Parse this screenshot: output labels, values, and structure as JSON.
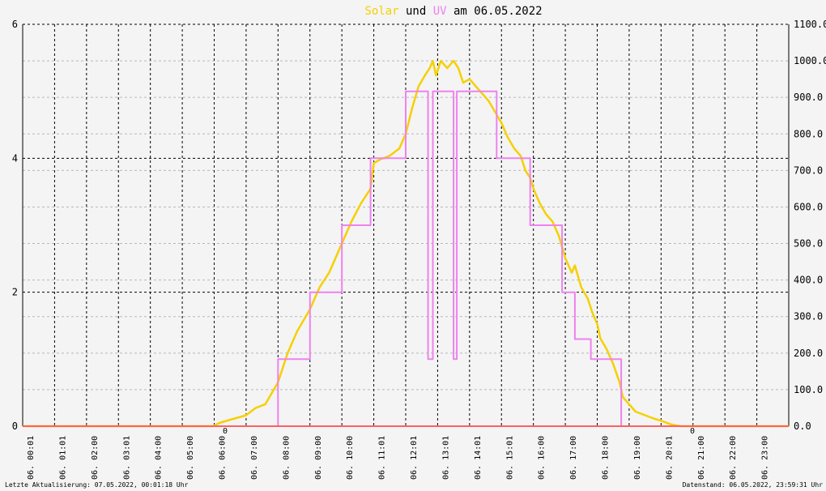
{
  "title": {
    "part1": "Solar",
    "part2": " und ",
    "part3": "UV",
    "part4": " am 06.05.2022"
  },
  "footer": {
    "left": "Letzte Aktualisierung: 07.05.2022, 00:01:18 Uhr",
    "right": "Datenstand: 06.05.2022, 23:59:31 Uhr"
  },
  "markers": {
    "sunrise": "0",
    "sunset": "0"
  },
  "colors": {
    "solar": "#f5d000",
    "uv": "#ee82ee",
    "grid_major": "#000000",
    "grid_minor": "#b8b8b8",
    "baseline": "#ff6060",
    "marker": "#ff0000"
  },
  "chart_data": {
    "type": "line",
    "x_unit": "hour of day",
    "xlim": [
      0,
      24
    ],
    "x_ticks": [
      "06. 00:01",
      "06. 01:01",
      "06. 02:00",
      "06. 03:01",
      "06. 04:00",
      "06. 05:00",
      "06. 06:00",
      "06. 07:00",
      "06. 08:00",
      "06. 09:00",
      "06. 10:00",
      "06. 11:01",
      "06. 12:01",
      "06. 13:01",
      "06. 14:01",
      "06. 15:01",
      "06. 16:00",
      "06. 17:00",
      "06. 18:00",
      "06. 19:00",
      "06. 20:01",
      "06. 21:00",
      "06. 22:00",
      "06. 23:00"
    ],
    "y_left": {
      "lim": [
        0,
        6
      ],
      "ticks": [
        "0",
        "2",
        "4",
        "6"
      ]
    },
    "y_right": {
      "lim": [
        0,
        1100
      ],
      "ticks": [
        "0.0",
        "100.0",
        "200.0",
        "300.0",
        "400.0",
        "500.0",
        "600.0",
        "700.0",
        "800.0",
        "900.0",
        "1000.0",
        "1100.0"
      ]
    },
    "series": [
      {
        "name": "Solar",
        "axis": "right",
        "x": [
          0,
          5.95,
          6.2,
          6.6,
          7.0,
          7.3,
          7.6,
          8.0,
          8.3,
          8.6,
          9.0,
          9.3,
          9.6,
          10.0,
          10.3,
          10.6,
          10.9,
          11.0,
          11.2,
          11.5,
          11.8,
          12.0,
          12.2,
          12.4,
          12.6,
          12.75,
          12.85,
          12.95,
          13.1,
          13.3,
          13.5,
          13.65,
          13.8,
          14.0,
          14.2,
          14.4,
          14.6,
          14.8,
          15.0,
          15.2,
          15.4,
          15.6,
          15.75,
          15.9,
          16.0,
          16.2,
          16.4,
          16.6,
          16.8,
          17.0,
          17.2,
          17.3,
          17.5,
          17.7,
          17.85,
          18.0,
          18.1,
          18.3,
          18.5,
          18.7,
          18.8,
          19.0,
          19.2,
          19.5,
          19.8,
          20.0,
          20.3,
          20.6,
          20.85,
          21.0,
          24
        ],
        "values": [
          0,
          0,
          10,
          20,
          30,
          50,
          60,
          120,
          200,
          260,
          320,
          380,
          420,
          500,
          560,
          610,
          650,
          720,
          730,
          740,
          760,
          800,
          870,
          930,
          960,
          980,
          1000,
          960,
          1000,
          980,
          1000,
          980,
          940,
          950,
          930,
          910,
          890,
          860,
          830,
          790,
          760,
          740,
          700,
          680,
          650,
          610,
          580,
          560,
          520,
          460,
          420,
          440,
          380,
          350,
          310,
          280,
          240,
          210,
          170,
          120,
          80,
          60,
          40,
          30,
          20,
          15,
          5,
          0,
          0,
          0,
          0
        ]
      },
      {
        "name": "UV",
        "axis": "left",
        "x": [
          0,
          8.0,
          8.0,
          9.0,
          9.0,
          10.0,
          10.0,
          10.9,
          10.9,
          12.0,
          12.0,
          12.7,
          12.7,
          12.85,
          12.85,
          13.5,
          13.5,
          13.6,
          13.6,
          14.85,
          14.85,
          15.9,
          15.9,
          16.9,
          16.9,
          17.3,
          17.3,
          17.8,
          17.8,
          18.75,
          18.75,
          24
        ],
        "values": [
          0,
          0,
          1,
          1,
          2,
          2,
          3,
          3,
          4,
          4,
          5,
          5,
          1,
          1,
          5,
          5,
          1,
          1,
          5,
          5,
          4,
          4,
          3,
          3,
          2,
          2,
          1.3,
          1.3,
          1,
          1,
          0,
          0
        ]
      }
    ]
  }
}
